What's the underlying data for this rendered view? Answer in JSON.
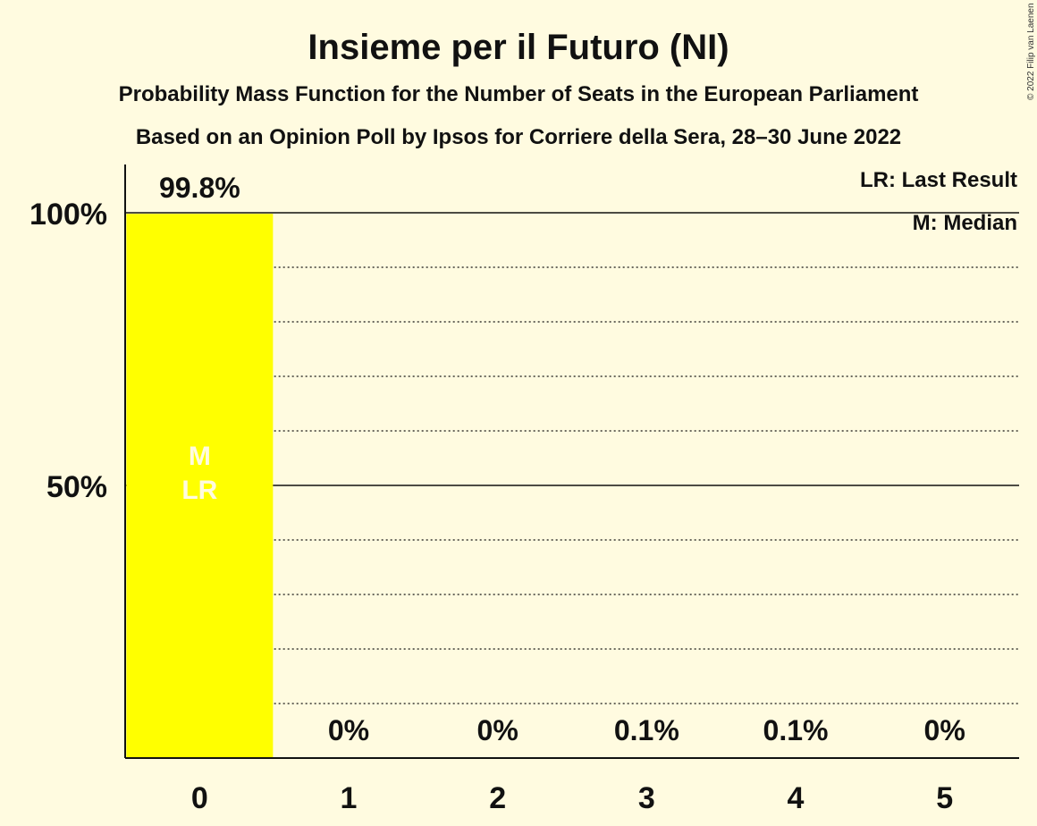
{
  "chart_data": {
    "type": "bar",
    "title": "Insieme per il Futuro (NI)",
    "subtitle_1": "Probability Mass Function for the Number of Seats in the European Parliament",
    "subtitle_2": "Based on an Opinion Poll by Ipsos for Corriere della Sera, 28–30 June 2022",
    "copyright": "© 2022 Filip van Laenen",
    "categories": [
      "0",
      "1",
      "2",
      "3",
      "4",
      "5"
    ],
    "values": [
      99.8,
      0,
      0,
      0.1,
      0.1,
      0
    ],
    "value_labels": [
      "99.8%",
      "0%",
      "0%",
      "0.1%",
      "0.1%",
      "0%"
    ],
    "ylim": [
      0,
      110
    ],
    "ytick_values": [
      50,
      100
    ],
    "ytick_labels": [
      "50%",
      "100%"
    ],
    "grid": true,
    "grid_step": 10,
    "bar_color": "#ffff00",
    "median_label": "M",
    "last_result_label": "LR",
    "median_seats": 0,
    "last_result_seats": 0,
    "legend_position": "top-right",
    "legend": [
      "LR: Last Result",
      "M: Median"
    ]
  }
}
